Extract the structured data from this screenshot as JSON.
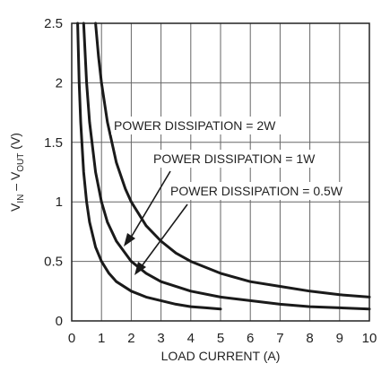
{
  "chart_data": {
    "type": "line",
    "xlabel": "LOAD CURRENT (A)",
    "ylabel": {
      "main": "V",
      "sub1": "IN",
      "mid": " – V",
      "sub2": "OUT",
      "unit": " (V)"
    },
    "xlim": [
      0,
      10
    ],
    "ylim": [
      0,
      2.5
    ],
    "x_ticks": [
      "0",
      "1",
      "2",
      "3",
      "4",
      "5",
      "6",
      "7",
      "8",
      "9",
      "10"
    ],
    "y_ticks": [
      "0",
      "0.5",
      "1",
      "1.5",
      "2",
      "2.5"
    ],
    "grid": true,
    "series": [
      {
        "name": "POWER DISSIPATION = 2W",
        "x": [
          0.8,
          0.9,
          1.0,
          1.2,
          1.5,
          1.8,
          2.0,
          2.5,
          3.0,
          3.5,
          4.0,
          5.0,
          6.0,
          7.0,
          8.0,
          9.0,
          10.0
        ],
        "y": [
          2.5,
          2.22,
          2.0,
          1.67,
          1.33,
          1.11,
          1.0,
          0.8,
          0.67,
          0.57,
          0.5,
          0.4,
          0.33,
          0.29,
          0.25,
          0.22,
          0.2
        ]
      },
      {
        "name": "POWER DISSIPATION = 1W",
        "x": [
          0.4,
          0.5,
          0.6,
          0.8,
          1.0,
          1.2,
          1.5,
          2.0,
          2.5,
          3.0,
          4.0,
          5.0,
          6.0,
          7.0,
          8.0,
          9.0,
          10.0
        ],
        "y": [
          2.5,
          2.0,
          1.67,
          1.25,
          1.0,
          0.83,
          0.67,
          0.5,
          0.4,
          0.33,
          0.25,
          0.2,
          0.17,
          0.14,
          0.12,
          0.11,
          0.1
        ]
      },
      {
        "name": "POWER DISSIPATION = 0.5W",
        "x": [
          0.2,
          0.25,
          0.3,
          0.4,
          0.5,
          0.6,
          0.8,
          1.0,
          1.25,
          1.5,
          2.0,
          2.5,
          3.0,
          3.5,
          4.0,
          4.5,
          5.0
        ],
        "y": [
          2.5,
          2.0,
          1.67,
          1.25,
          1.0,
          0.83,
          0.62,
          0.5,
          0.4,
          0.33,
          0.25,
          0.2,
          0.17,
          0.14,
          0.12,
          0.11,
          0.1
        ]
      }
    ],
    "annotations": [
      "POWER DISSIPATION = 2W",
      "POWER DISSIPATION = 1W",
      "POWER DISSIPATION = 0.5W"
    ]
  }
}
